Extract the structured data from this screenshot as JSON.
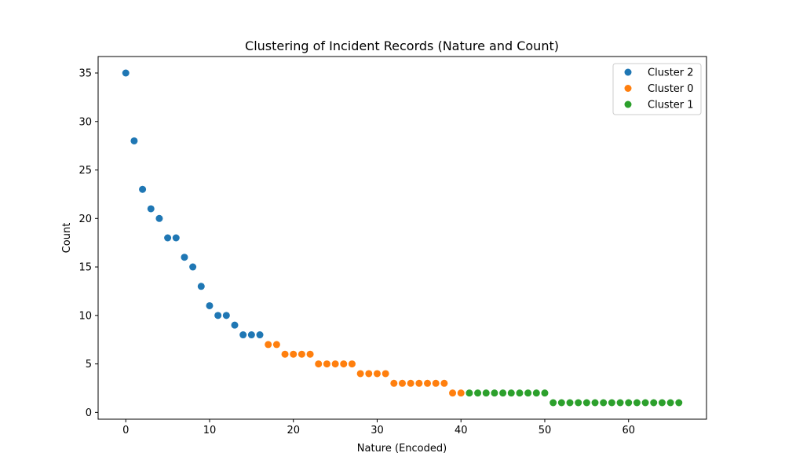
{
  "chart_data": {
    "type": "scatter",
    "title": "Clustering of Incident Records (Nature and Count)",
    "xlabel": "Nature (Encoded)",
    "ylabel": "Count",
    "xlim": [
      -3.3,
      69.3
    ],
    "ylim": [
      -0.7,
      36.7
    ],
    "xticks": [
      0,
      10,
      20,
      30,
      40,
      50,
      60
    ],
    "yticks": [
      0,
      5,
      10,
      15,
      20,
      25,
      30,
      35
    ],
    "grid": false,
    "legend_position": "top-right",
    "series": [
      {
        "name": "Cluster 2",
        "color": "#1f77b4",
        "points": [
          [
            0,
            35
          ],
          [
            1,
            28
          ],
          [
            2,
            23
          ],
          [
            3,
            21
          ],
          [
            4,
            20
          ],
          [
            5,
            18
          ],
          [
            6,
            18
          ],
          [
            7,
            16
          ],
          [
            8,
            15
          ],
          [
            9,
            13
          ],
          [
            10,
            11
          ],
          [
            11,
            10
          ],
          [
            12,
            10
          ],
          [
            13,
            9
          ],
          [
            14,
            8
          ],
          [
            15,
            8
          ],
          [
            16,
            8
          ]
        ]
      },
      {
        "name": "Cluster 0",
        "color": "#ff7f0e",
        "points": [
          [
            17,
            7
          ],
          [
            18,
            7
          ],
          [
            19,
            6
          ],
          [
            20,
            6
          ],
          [
            21,
            6
          ],
          [
            22,
            6
          ],
          [
            23,
            5
          ],
          [
            24,
            5
          ],
          [
            25,
            5
          ],
          [
            26,
            5
          ],
          [
            27,
            5
          ],
          [
            28,
            4
          ],
          [
            29,
            4
          ],
          [
            30,
            4
          ],
          [
            31,
            4
          ],
          [
            32,
            3
          ],
          [
            33,
            3
          ],
          [
            34,
            3
          ],
          [
            35,
            3
          ],
          [
            36,
            3
          ],
          [
            37,
            3
          ],
          [
            38,
            3
          ],
          [
            39,
            2
          ],
          [
            40,
            2
          ]
        ]
      },
      {
        "name": "Cluster 1",
        "color": "#2ca02c",
        "points": [
          [
            41,
            2
          ],
          [
            42,
            2
          ],
          [
            43,
            2
          ],
          [
            44,
            2
          ],
          [
            45,
            2
          ],
          [
            46,
            2
          ],
          [
            47,
            2
          ],
          [
            48,
            2
          ],
          [
            49,
            2
          ],
          [
            50,
            2
          ],
          [
            51,
            1
          ],
          [
            52,
            1
          ],
          [
            53,
            1
          ],
          [
            54,
            1
          ],
          [
            55,
            1
          ],
          [
            56,
            1
          ],
          [
            57,
            1
          ],
          [
            58,
            1
          ],
          [
            59,
            1
          ],
          [
            60,
            1
          ],
          [
            61,
            1
          ],
          [
            62,
            1
          ],
          [
            63,
            1
          ],
          [
            64,
            1
          ],
          [
            65,
            1
          ],
          [
            66,
            1
          ]
        ]
      }
    ]
  }
}
